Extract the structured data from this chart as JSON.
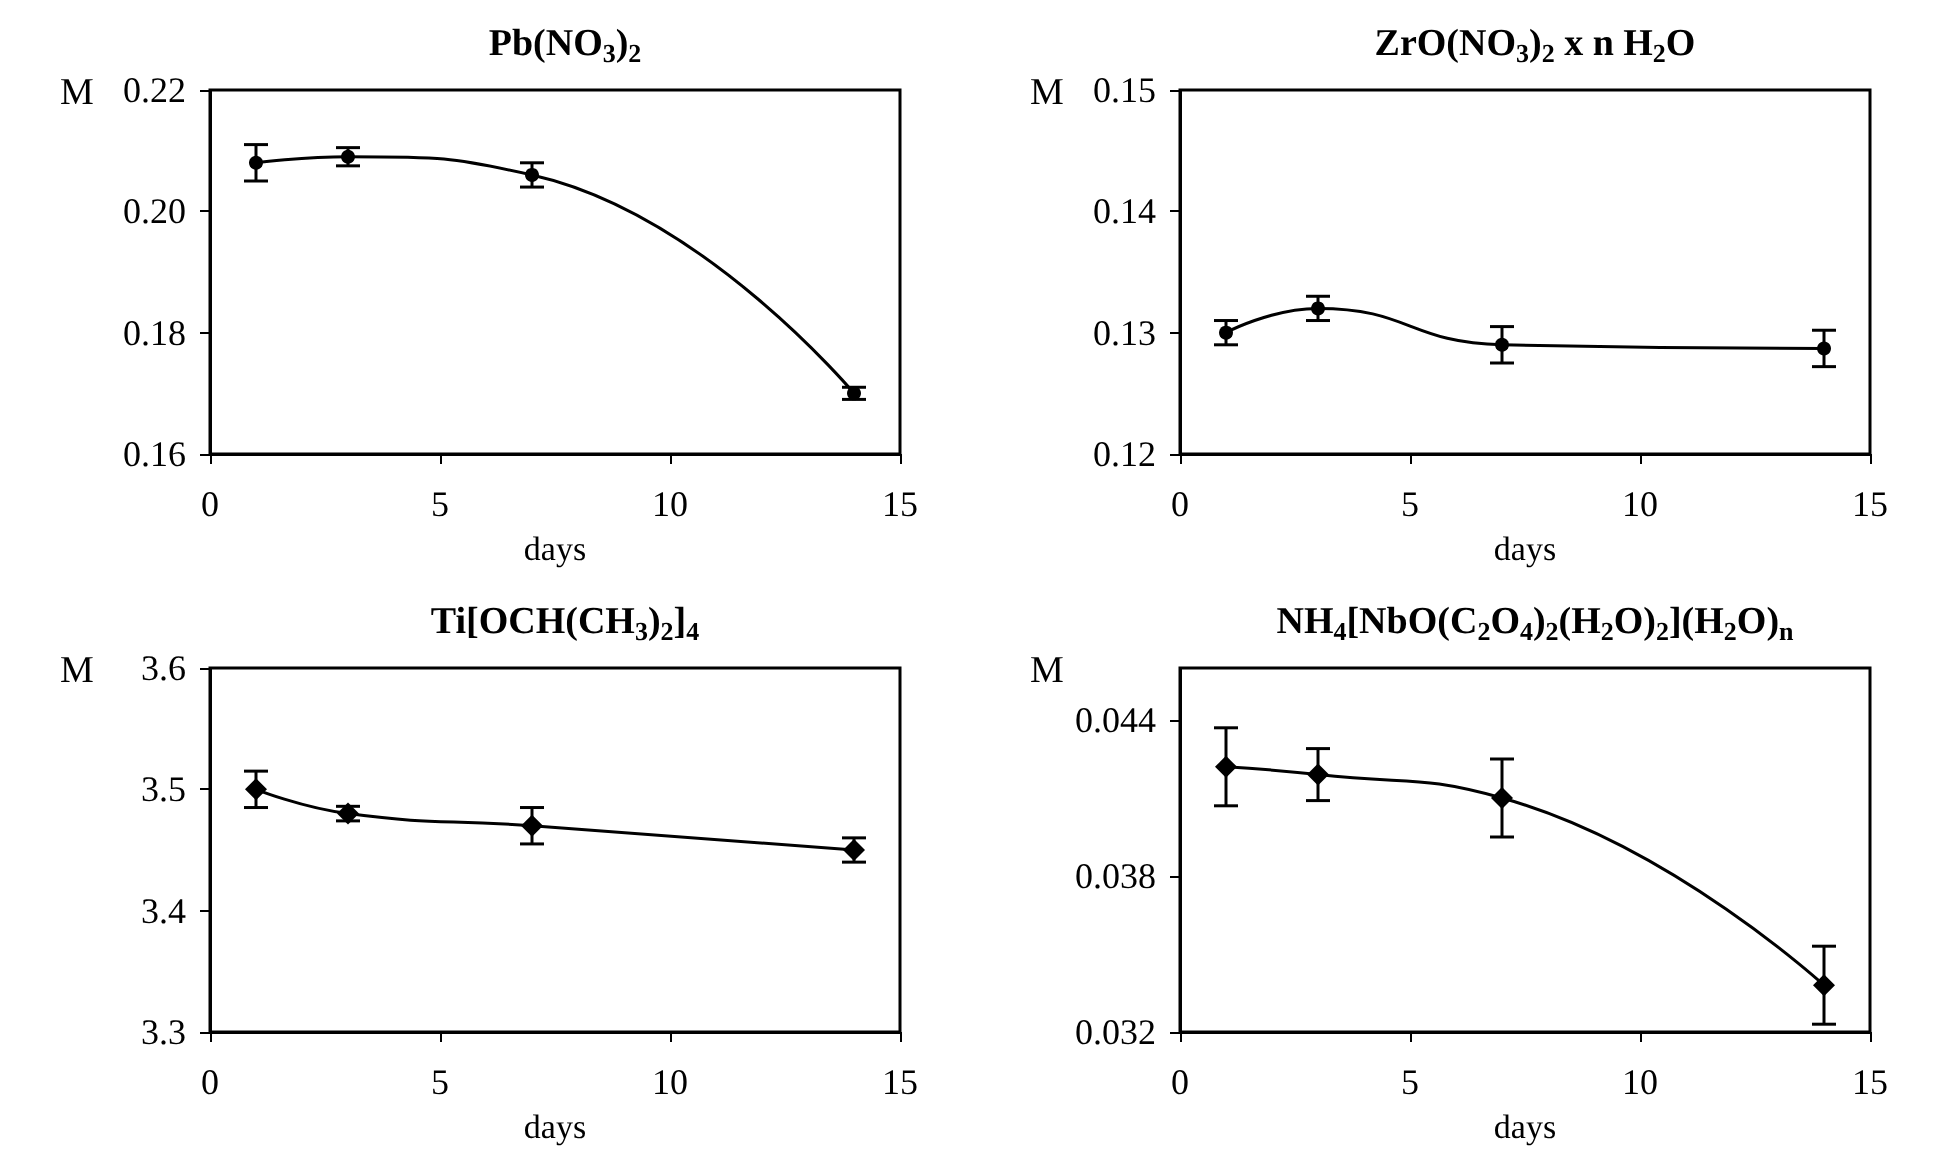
{
  "chart_data": [
    {
      "type": "line",
      "title": "Pb(NO$_{3}$)$_{2}$",
      "xlabel": "days",
      "ylabel": "M",
      "marker": "circle",
      "grid": false,
      "xlim": [
        0,
        15
      ],
      "xticks": [
        0,
        5,
        10,
        15
      ],
      "ylim": [
        0.16,
        0.22
      ],
      "yticks": [
        0.16,
        0.18,
        {
          "value": 0.2,
          "label": "0.20"
        },
        0.22
      ],
      "series": [
        {
          "color": "#000000",
          "x": [
            1,
            3,
            7,
            14
          ],
          "values": [
            0.208,
            0.209,
            0.206,
            0.17
          ],
          "errors": [
            0.003,
            0.0015,
            0.002,
            0.001
          ]
        }
      ]
    },
    {
      "type": "line",
      "title": "ZrO(NO$_{3}$)$_{2}$ x n H$_{2}$O",
      "xlabel": "days",
      "ylabel": "M",
      "marker": "circle",
      "grid": false,
      "xlim": [
        0,
        15
      ],
      "xticks": [
        0,
        5,
        10,
        15
      ],
      "ylim": [
        0.12,
        0.15
      ],
      "yticks": [
        0.12,
        0.13,
        0.14,
        0.15
      ],
      "series": [
        {
          "color": "#000000",
          "x": [
            1,
            3,
            7,
            14
          ],
          "values": [
            0.13,
            0.132,
            0.129,
            0.1287
          ],
          "errors": [
            0.001,
            0.001,
            0.0015,
            0.0015
          ]
        }
      ]
    },
    {
      "type": "line",
      "title": "Ti[OCH(CH$_{3}$)$_{2}$]$_{4}$",
      "xlabel": "days",
      "ylabel": "M",
      "marker": "diamond",
      "grid": false,
      "xlim": [
        0,
        15
      ],
      "xticks": [
        0,
        5,
        10,
        15
      ],
      "ylim": [
        3.3,
        3.6
      ],
      "yticks": [
        3.3,
        3.4,
        3.5,
        3.6
      ],
      "series": [
        {
          "color": "#000000",
          "x": [
            1,
            3,
            7,
            14
          ],
          "values": [
            3.5,
            3.48,
            3.47,
            3.45
          ],
          "errors": [
            0.015,
            0.006,
            0.015,
            0.01
          ]
        }
      ]
    },
    {
      "type": "line",
      "title": "NH$_{4}$[NbO(C$_{2}$O$_{4}$)$_{2}$(H$_{2}$O)$_{2}$](H$_{2}$O)$_{n}$",
      "xlabel": "days",
      "ylabel": "M",
      "marker": "diamond",
      "grid": false,
      "xlim": [
        0,
        15
      ],
      "xticks": [
        0,
        5,
        10,
        15
      ],
      "ylim": [
        0.032,
        0.046
      ],
      "yticks": [
        0.032,
        0.038,
        0.044
      ],
      "series": [
        {
          "color": "#000000",
          "x": [
            1,
            3,
            7,
            14
          ],
          "values": [
            0.0422,
            0.0419,
            0.041,
            0.0338
          ],
          "errors": [
            0.0015,
            0.001,
            0.0015,
            0.0015
          ]
        }
      ]
    }
  ]
}
